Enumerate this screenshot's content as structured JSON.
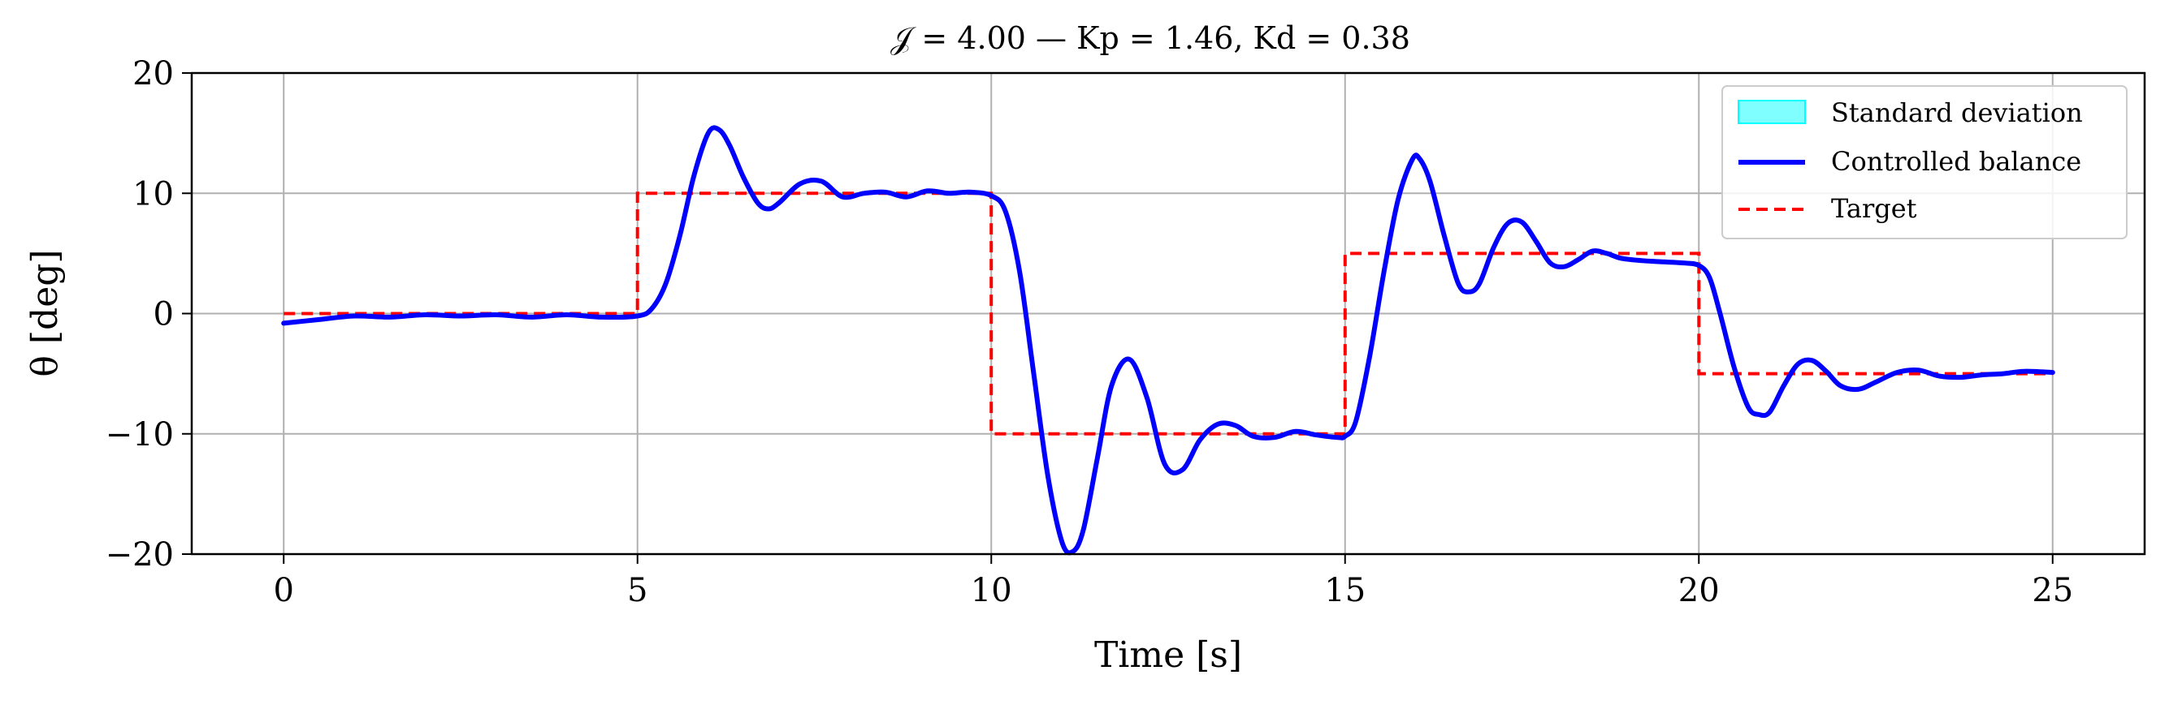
{
  "chart_data": {
    "type": "line",
    "title": "𝒥 = 4.00 — Kp = 1.46, Kd = 0.38",
    "xlabel": "Time [s]",
    "ylabel": "θ [deg]",
    "xlim": [
      -1.3,
      26.3
    ],
    "ylim": [
      -20,
      20
    ],
    "xticks": [
      0,
      5,
      10,
      15,
      20,
      25
    ],
    "yticks": [
      -20,
      -10,
      0,
      10,
      20
    ],
    "xtick_labels": [
      "0",
      "5",
      "10",
      "15",
      "20",
      "25"
    ],
    "ytick_labels": [
      "−20",
      "−10",
      "0",
      "10",
      "20"
    ],
    "grid": true,
    "legend_position": "top-right",
    "series": [
      {
        "name": "Standard deviation",
        "kind": "band",
        "color": "#00ffff"
      },
      {
        "name": "Controlled balance",
        "kind": "line",
        "color": "#0000ff",
        "x": [
          0,
          0.5,
          1,
          1.5,
          2,
          2.5,
          3,
          3.5,
          4,
          4.5,
          5,
          5.2,
          5.4,
          5.6,
          5.8,
          6.0,
          6.15,
          6.3,
          6.5,
          6.7,
          6.85,
          7.0,
          7.3,
          7.6,
          7.9,
          8.2,
          8.5,
          8.8,
          9.1,
          9.4,
          9.7,
          10.0,
          10.2,
          10.4,
          10.6,
          10.8,
          11.0,
          11.15,
          11.3,
          11.5,
          11.7,
          11.95,
          12.2,
          12.45,
          12.7,
          12.95,
          13.2,
          13.45,
          13.7,
          14.0,
          14.3,
          14.6,
          14.9,
          15.0,
          15.15,
          15.35,
          15.55,
          15.75,
          15.95,
          16.05,
          16.2,
          16.4,
          16.6,
          16.75,
          16.9,
          17.1,
          17.3,
          17.5,
          17.7,
          17.9,
          18.1,
          18.3,
          18.5,
          18.7,
          18.9,
          19.2,
          19.5,
          19.8,
          20.0,
          20.15,
          20.3,
          20.5,
          20.7,
          20.85,
          21.0,
          21.2,
          21.4,
          21.6,
          21.8,
          22.0,
          22.25,
          22.5,
          22.8,
          23.1,
          23.4,
          23.7,
          24.0,
          24.3,
          24.6,
          25.0
        ],
        "y": [
          -0.8,
          -0.5,
          -0.2,
          -0.3,
          -0.1,
          -0.2,
          -0.1,
          -0.3,
          -0.1,
          -0.3,
          -0.2,
          0.4,
          2.5,
          6.5,
          11.5,
          15.0,
          15.3,
          14.0,
          11.3,
          9.2,
          8.7,
          9.2,
          10.8,
          11.0,
          9.7,
          10.0,
          10.1,
          9.7,
          10.2,
          10.0,
          10.1,
          9.8,
          8.5,
          3.5,
          -5.0,
          -13.5,
          -19.0,
          -19.8,
          -18.0,
          -12.0,
          -6.0,
          -3.8,
          -7.0,
          -12.5,
          -13.0,
          -10.5,
          -9.2,
          -9.3,
          -10.2,
          -10.3,
          -9.8,
          -10.1,
          -10.3,
          -10.2,
          -9.0,
          -3.5,
          3.5,
          9.5,
          12.8,
          12.9,
          11.0,
          6.5,
          2.5,
          1.8,
          2.5,
          5.5,
          7.5,
          7.6,
          6.0,
          4.2,
          3.9,
          4.5,
          5.2,
          5.0,
          4.6,
          4.4,
          4.3,
          4.2,
          4.0,
          3.0,
          0.0,
          -4.5,
          -7.8,
          -8.4,
          -8.2,
          -6.0,
          -4.2,
          -3.9,
          -4.8,
          -6.0,
          -6.3,
          -5.7,
          -4.9,
          -4.7,
          -5.2,
          -5.3,
          -5.1,
          -5.0,
          -4.8,
          -4.9
        ]
      },
      {
        "name": "Target",
        "kind": "step",
        "color": "#ff0000",
        "x": [
          0,
          5,
          5,
          10,
          10,
          15,
          15,
          20,
          20,
          25
        ],
        "y": [
          0,
          0,
          10,
          10,
          -10,
          -10,
          5,
          5,
          -5,
          -5
        ]
      }
    ]
  }
}
